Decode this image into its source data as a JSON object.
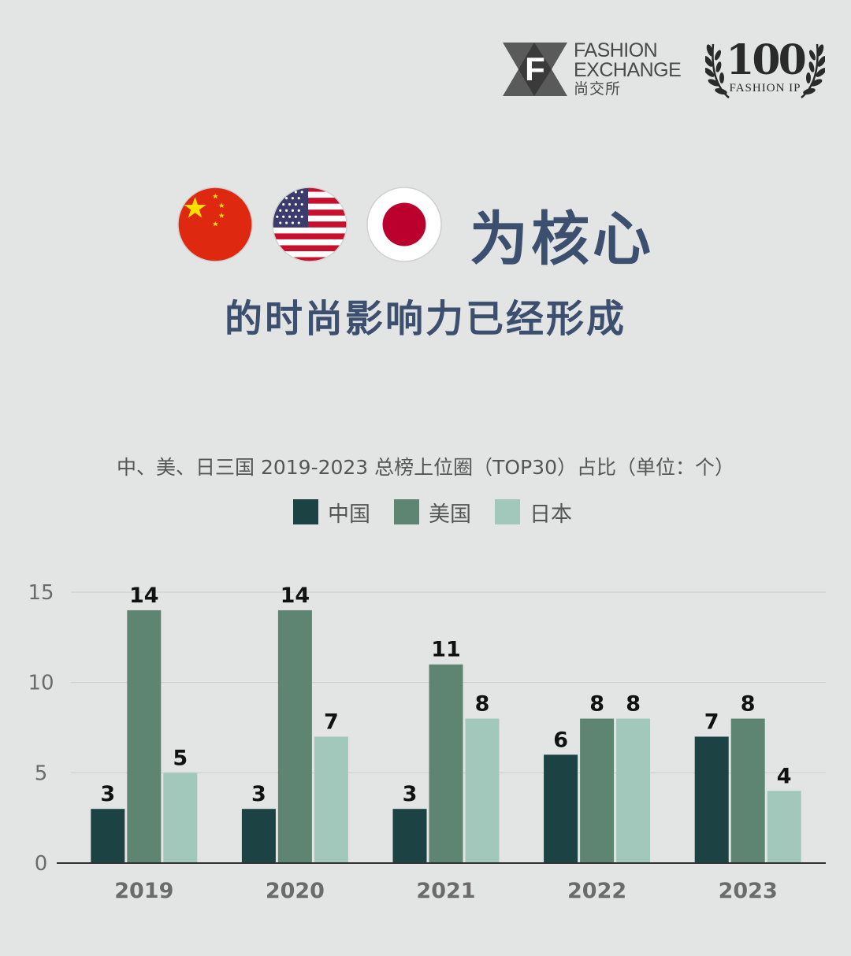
{
  "header": {
    "fx_logo": {
      "letter": "F",
      "line1": "FASHION",
      "line2": "EXCHANGE",
      "cn": "尚交所"
    },
    "ip_logo": {
      "number": "100",
      "sub": "FASHION IP"
    }
  },
  "title": {
    "main": "为核心",
    "sub": "的时尚影响力已经形成"
  },
  "flags": [
    "china-flag-icon",
    "usa-flag-icon",
    "japan-flag-icon"
  ],
  "chart_data": {
    "type": "bar",
    "title": "中、美、日三国 2019-2023 总榜上位圈（TOP30）占比（单位：个）",
    "categories": [
      "2019",
      "2020",
      "2021",
      "2022",
      "2023"
    ],
    "series": [
      {
        "name": "中国",
        "color": "#1c4244",
        "values": [
          3,
          3,
          3,
          6,
          7
        ]
      },
      {
        "name": "美国",
        "color": "#5e8572",
        "values": [
          14,
          14,
          11,
          8,
          8
        ]
      },
      {
        "name": "日本",
        "color": "#a2c8bb",
        "values": [
          5,
          7,
          8,
          8,
          4
        ]
      }
    ],
    "yticks": [
      0,
      5,
      10,
      15
    ],
    "ylim": [
      0,
      15
    ],
    "grid": true,
    "legend": "top-center"
  }
}
